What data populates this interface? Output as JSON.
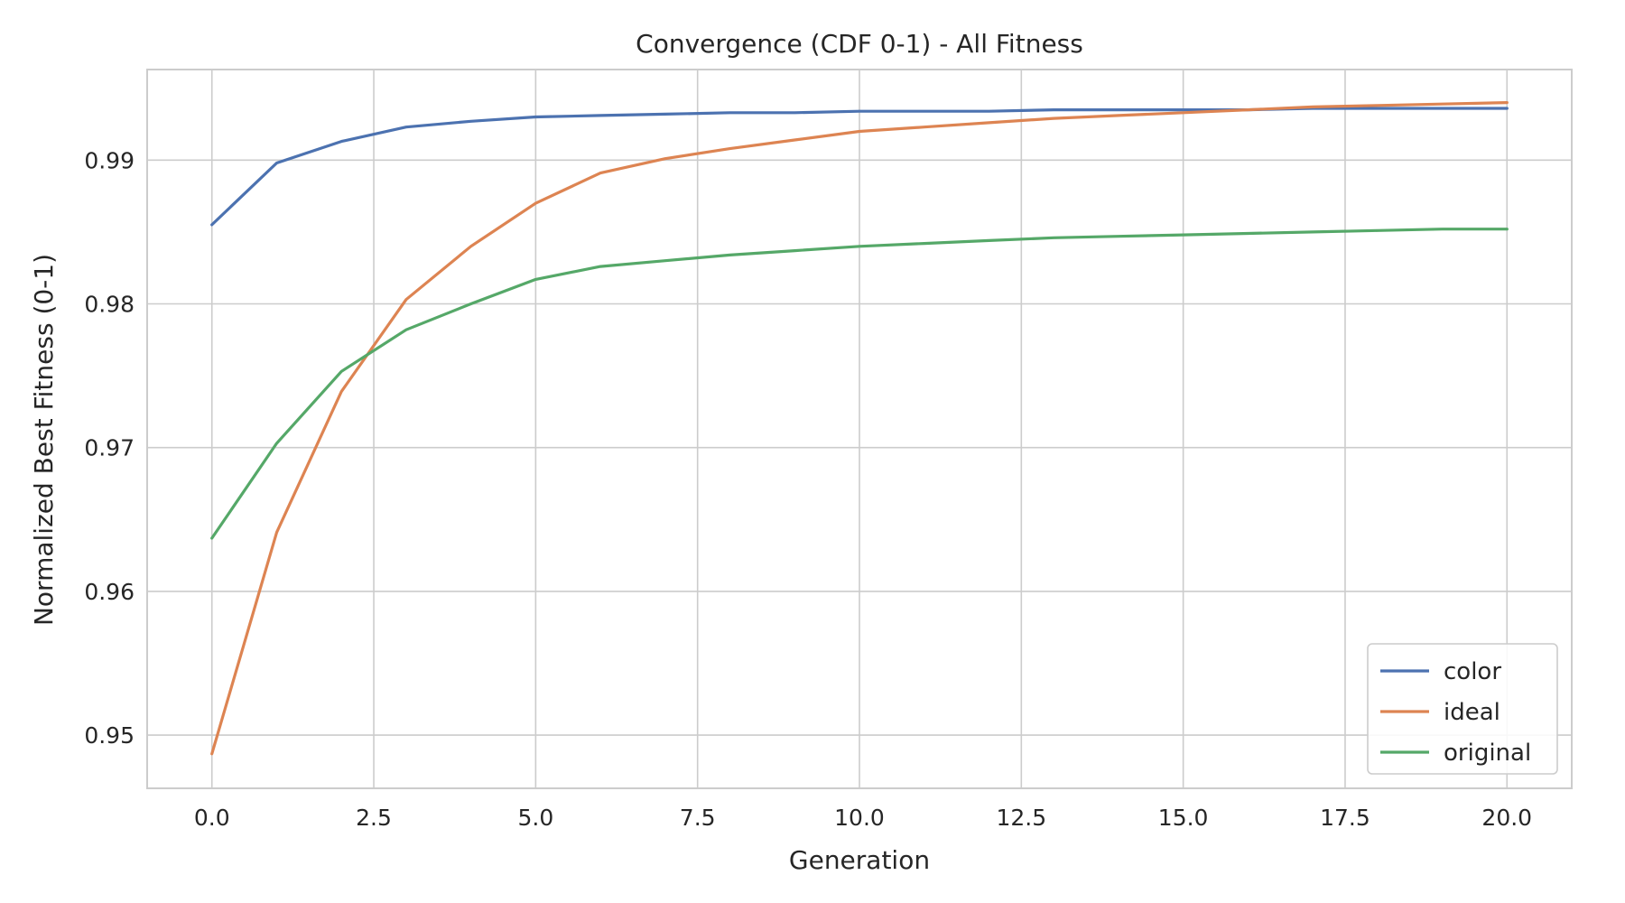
{
  "chart_data": {
    "type": "line",
    "title": "Convergence (CDF 0-1) - All Fitness",
    "xlabel": "Generation",
    "ylabel": "Normalized Best Fitness (0-1)",
    "xlim": [
      -1.0,
      21.0
    ],
    "ylim": [
      0.9463,
      0.9963
    ],
    "xticks": [
      0.0,
      2.5,
      5.0,
      7.5,
      10.0,
      12.5,
      15.0,
      17.5,
      20.0
    ],
    "xtick_labels": [
      "0.0",
      "2.5",
      "5.0",
      "7.5",
      "10.0",
      "12.5",
      "15.0",
      "17.5",
      "20.0"
    ],
    "yticks": [
      0.95,
      0.96,
      0.97,
      0.98,
      0.99
    ],
    "ytick_labels": [
      "0.95",
      "0.96",
      "0.97",
      "0.98",
      "0.99"
    ],
    "grid": true,
    "legend_position": "lower right",
    "x": [
      0,
      1,
      2,
      3,
      4,
      5,
      6,
      7,
      8,
      9,
      10,
      11,
      12,
      13,
      14,
      15,
      16,
      17,
      18,
      19,
      20
    ],
    "series": [
      {
        "name": "color",
        "color": "#4c72b0",
        "values": [
          0.9855,
          0.9898,
          0.9913,
          0.9923,
          0.9927,
          0.993,
          0.9931,
          0.9932,
          0.9933,
          0.9933,
          0.9934,
          0.9934,
          0.9934,
          0.9935,
          0.9935,
          0.9935,
          0.9935,
          0.9936,
          0.9936,
          0.9936,
          0.9936
        ]
      },
      {
        "name": "ideal",
        "color": "#dd8452",
        "values": [
          0.9487,
          0.9641,
          0.9739,
          0.9803,
          0.984,
          0.987,
          0.9891,
          0.9901,
          0.9908,
          0.9914,
          0.992,
          0.9923,
          0.9926,
          0.9929,
          0.9931,
          0.9933,
          0.9935,
          0.9937,
          0.9938,
          0.9939,
          0.994
        ]
      },
      {
        "name": "original",
        "color": "#55a868",
        "values": [
          0.9637,
          0.9703,
          0.9753,
          0.9782,
          0.98,
          0.9817,
          0.9826,
          0.983,
          0.9834,
          0.9837,
          0.984,
          0.9842,
          0.9844,
          0.9846,
          0.9847,
          0.9848,
          0.9849,
          0.985,
          0.9851,
          0.9852,
          0.9852
        ]
      }
    ]
  }
}
